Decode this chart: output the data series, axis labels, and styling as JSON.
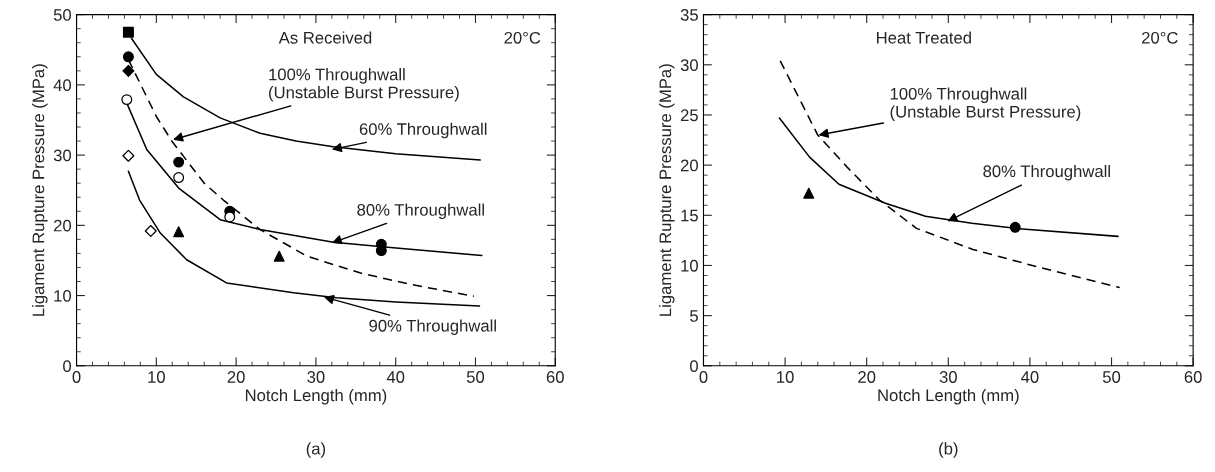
{
  "chart_data": [
    {
      "type": "line",
      "xlabel": "Notch Length (mm)",
      "ylabel": "Ligament Rupture Pressure (MPa)",
      "xlim": [
        0,
        60
      ],
      "xticks": [
        0,
        10,
        20,
        30,
        40,
        50,
        60
      ],
      "ylim": [
        0,
        50
      ],
      "yticks": [
        0,
        10,
        20,
        30,
        40,
        50
      ],
      "grid": false,
      "legend": false,
      "series": [
        {
          "line_style": "solid",
          "marker": "none",
          "color": "#000000",
          "x": [
            6.9,
            10,
            13.4,
            18,
            23.0,
            27.5,
            32.2,
            40,
            50.6
          ],
          "values": [
            46.6,
            41.5,
            38.3,
            35.3,
            33.1,
            32.0,
            31.2,
            30.2,
            29.3
          ]
        },
        {
          "line_style": "solid",
          "marker": "none",
          "color": "#000000",
          "x": [
            6.3,
            8.8,
            12.8,
            18.0,
            23.0,
            32.2,
            39.7,
            50.8
          ],
          "values": [
            37.4,
            30.8,
            25.3,
            20.8,
            19.4,
            17.6,
            16.8,
            15.7
          ]
        },
        {
          "line_style": "solid",
          "marker": "none",
          "color": "#000000",
          "x": [
            6.5,
            7.9,
            10.5,
            13.8,
            18.8,
            27.2,
            32.6,
            40,
            50.5
          ],
          "values": [
            27.7,
            23.6,
            18.9,
            15.1,
            11.8,
            10.4,
            9.7,
            9.1,
            8.5
          ]
        },
        {
          "line_style": "dashed",
          "marker": "none",
          "color": "#000000",
          "x": [
            6.5,
            10.0,
            12.0,
            16.0,
            18.4,
            23.0,
            28.9,
            35.6,
            41.8,
            49.8
          ],
          "values": [
            43.6,
            35.5,
            31.9,
            26.0,
            23.6,
            19.4,
            15.6,
            13.2,
            11.6,
            9.9
          ]
        },
        {
          "type": "scatter",
          "marker": "square",
          "color": "#000000",
          "x": [
            6.5
          ],
          "values": [
            47.5
          ]
        },
        {
          "type": "scatter",
          "marker": "circle",
          "color": "#000000",
          "x": [
            6.5,
            12.8,
            19.2,
            38.2,
            38.2
          ],
          "values": [
            44.0,
            29.0,
            22.0,
            17.3,
            16.4
          ]
        },
        {
          "type": "scatter",
          "marker": "diamond",
          "color": "#000000",
          "x": [
            6.5
          ],
          "values": [
            42.0
          ]
        },
        {
          "type": "scatter",
          "marker": "circle",
          "color": "#ffffff",
          "x": [
            6.3,
            12.8,
            19.2
          ],
          "values": [
            37.9,
            26.8,
            21.2
          ]
        },
        {
          "type": "scatter",
          "marker": "diamond",
          "color": "#ffffff",
          "x": [
            6.5,
            9.3
          ],
          "values": [
            29.9,
            19.2
          ]
        },
        {
          "type": "scatter",
          "marker": "triangle",
          "color": "#000000",
          "x": [
            12.8,
            25.4
          ],
          "values": [
            19.1,
            15.6
          ]
        }
      ],
      "annotations": [
        "As Received",
        "20°C",
        {
          "text": "100% Throughwall\n(Unstable Burst Pressure)",
          "x": 12.1,
          "y": 32.2
        },
        {
          "text": "60% Throughwall",
          "x": 32.0,
          "y": 30.8
        },
        {
          "text": "80% Throughwall",
          "x": 32.0,
          "y": 17.5
        },
        {
          "text": "90% Throughwall",
          "x": 31.0,
          "y": 9.8
        },
        "(a)"
      ]
    },
    {
      "type": "line",
      "xlabel": "Notch Length (mm)",
      "ylabel": "Ligament Rupture Pressure (MPa)",
      "xlim": [
        0,
        60
      ],
      "xticks": [
        0,
        10,
        20,
        30,
        40,
        50,
        60
      ],
      "ylim": [
        0,
        35
      ],
      "yticks": [
        0,
        5,
        10,
        15,
        20,
        25,
        30,
        35
      ],
      "grid": false,
      "legend": false,
      "series": [
        {
          "line_style": "solid",
          "marker": "none",
          "color": "#000000",
          "x": [
            9.3,
            13.0,
            16.6,
            22.3,
            27.2,
            32.9,
            38.2,
            50.8
          ],
          "values": [
            24.7,
            20.8,
            18.1,
            16.2,
            14.9,
            14.2,
            13.7,
            12.9
          ]
        },
        {
          "line_style": "dashed",
          "marker": "none",
          "color": "#000000",
          "x": [
            9.4,
            14.0,
            17.6,
            21.6,
            26.1,
            33.0,
            41.2,
            51.0
          ],
          "values": [
            30.4,
            23.0,
            19.8,
            16.5,
            13.7,
            11.6,
            9.8,
            7.8
          ]
        },
        {
          "type": "scatter",
          "marker": "triangle",
          "color": "#000000",
          "x": [
            12.9
          ],
          "values": [
            17.2
          ]
        },
        {
          "type": "scatter",
          "marker": "circle",
          "color": "#000000",
          "x": [
            38.2
          ],
          "values": [
            13.8
          ]
        }
      ],
      "annotations": [
        "Heat Treated",
        "20°C",
        {
          "text": "100% Throughwall\n(Unstable Burst Pressure)",
          "x": 14.1,
          "y": 23.0
        },
        {
          "text": "80% Throughwall",
          "x": 29.9,
          "y": 14.4
        },
        "(b)"
      ]
    }
  ]
}
